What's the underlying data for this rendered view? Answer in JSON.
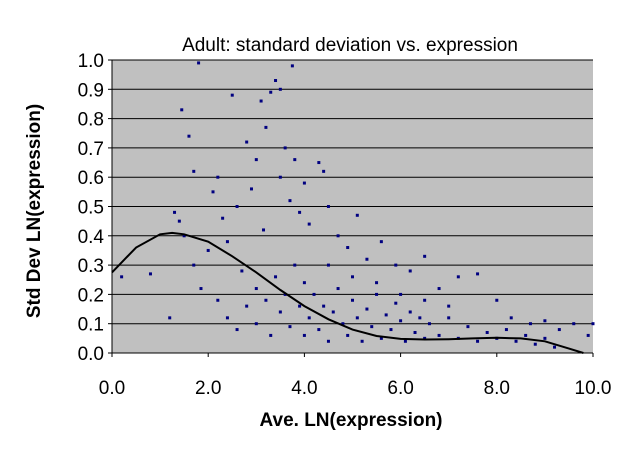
{
  "chart_data": {
    "type": "scatter",
    "title": "Adult: standard deviation vs. expression",
    "xlabel": "Ave. LN(expression)",
    "ylabel": "Std Dev LN(expression)",
    "xlim": [
      0,
      10
    ],
    "ylim": [
      0,
      1
    ],
    "x_ticks": [
      "0.0",
      "2.0",
      "4.0",
      "6.0",
      "8.0",
      "10.0"
    ],
    "y_ticks": [
      "0.0",
      "0.1",
      "0.2",
      "0.3",
      "0.4",
      "0.5",
      "0.6",
      "0.7",
      "0.8",
      "0.9",
      "1.0"
    ],
    "plot_background": "#c0c0c0",
    "gridlines": "horizontal",
    "point_color": "#000080",
    "trend_color": "#000000",
    "series": [
      {
        "kind": "points",
        "points": [
          [
            0.2,
            0.26
          ],
          [
            0.8,
            0.27
          ],
          [
            1.2,
            0.12
          ],
          [
            1.3,
            0.48
          ],
          [
            1.4,
            0.45
          ],
          [
            1.45,
            0.83
          ],
          [
            1.5,
            0.4
          ],
          [
            1.6,
            0.74
          ],
          [
            1.7,
            0.3
          ],
          [
            1.7,
            0.62
          ],
          [
            1.8,
            0.99
          ],
          [
            1.85,
            0.22
          ],
          [
            2.0,
            0.35
          ],
          [
            2.1,
            0.55
          ],
          [
            2.2,
            0.6
          ],
          [
            2.2,
            0.18
          ],
          [
            2.3,
            0.46
          ],
          [
            2.4,
            0.38
          ],
          [
            2.5,
            0.88
          ],
          [
            2.6,
            0.5
          ],
          [
            2.7,
            0.28
          ],
          [
            2.8,
            0.72
          ],
          [
            2.9,
            0.56
          ],
          [
            3.0,
            0.66
          ],
          [
            3.1,
            0.86
          ],
          [
            3.15,
            0.42
          ],
          [
            3.2,
            0.77
          ],
          [
            3.3,
            0.89
          ],
          [
            3.4,
            0.93
          ],
          [
            3.5,
            0.9
          ],
          [
            3.5,
            0.6
          ],
          [
            3.6,
            0.7
          ],
          [
            3.7,
            0.52
          ],
          [
            3.75,
            0.98
          ],
          [
            3.8,
            0.66
          ],
          [
            3.9,
            0.48
          ],
          [
            4.0,
            0.58
          ],
          [
            4.1,
            0.44
          ],
          [
            4.3,
            0.65
          ],
          [
            4.4,
            0.62
          ],
          [
            4.5,
            0.5
          ],
          [
            4.7,
            0.4
          ],
          [
            4.9,
            0.36
          ],
          [
            5.1,
            0.47
          ],
          [
            5.3,
            0.32
          ],
          [
            5.6,
            0.38
          ],
          [
            5.9,
            0.3
          ],
          [
            6.2,
            0.28
          ],
          [
            6.5,
            0.33
          ],
          [
            6.8,
            0.22
          ],
          [
            7.2,
            0.26
          ],
          [
            7.6,
            0.27
          ],
          [
            8.0,
            0.18
          ],
          [
            8.3,
            0.12
          ],
          [
            8.7,
            0.1
          ],
          [
            9.0,
            0.11
          ],
          [
            9.3,
            0.08
          ],
          [
            9.6,
            0.1
          ],
          [
            9.9,
            0.06
          ],
          [
            10.0,
            0.1
          ]
        ]
      },
      {
        "kind": "points",
        "points": [
          [
            2.4,
            0.12
          ],
          [
            2.6,
            0.08
          ],
          [
            2.8,
            0.16
          ],
          [
            3.0,
            0.1
          ],
          [
            3.0,
            0.22
          ],
          [
            3.2,
            0.18
          ],
          [
            3.3,
            0.06
          ],
          [
            3.4,
            0.26
          ],
          [
            3.5,
            0.14
          ],
          [
            3.6,
            0.2
          ],
          [
            3.7,
            0.09
          ],
          [
            3.8,
            0.3
          ],
          [
            3.9,
            0.16
          ],
          [
            4.0,
            0.24
          ],
          [
            4.0,
            0.06
          ],
          [
            4.1,
            0.12
          ],
          [
            4.2,
            0.2
          ],
          [
            4.3,
            0.08
          ],
          [
            4.4,
            0.16
          ],
          [
            4.5,
            0.04
          ],
          [
            4.6,
            0.14
          ],
          [
            4.7,
            0.22
          ],
          [
            4.8,
            0.1
          ],
          [
            4.9,
            0.06
          ],
          [
            5.0,
            0.18
          ],
          [
            5.1,
            0.12
          ],
          [
            5.2,
            0.04
          ],
          [
            5.3,
            0.15
          ],
          [
            5.4,
            0.09
          ],
          [
            5.5,
            0.2
          ],
          [
            5.6,
            0.05
          ],
          [
            5.7,
            0.13
          ],
          [
            5.8,
            0.08
          ],
          [
            5.9,
            0.17
          ],
          [
            6.0,
            0.11
          ],
          [
            6.1,
            0.04
          ],
          [
            6.2,
            0.14
          ],
          [
            6.3,
            0.07
          ],
          [
            6.4,
            0.12
          ],
          [
            6.5,
            0.05
          ],
          [
            6.6,
            0.1
          ],
          [
            6.8,
            0.06
          ],
          [
            7.0,
            0.12
          ],
          [
            7.2,
            0.05
          ],
          [
            7.4,
            0.09
          ],
          [
            7.6,
            0.04
          ],
          [
            7.8,
            0.07
          ],
          [
            8.0,
            0.05
          ],
          [
            8.2,
            0.08
          ],
          [
            8.4,
            0.04
          ],
          [
            8.6,
            0.06
          ],
          [
            8.8,
            0.03
          ],
          [
            9.0,
            0.05
          ],
          [
            9.2,
            0.02
          ],
          [
            4.5,
            0.3
          ],
          [
            5.0,
            0.26
          ],
          [
            5.5,
            0.24
          ],
          [
            6.0,
            0.2
          ],
          [
            6.5,
            0.18
          ],
          [
            7.0,
            0.16
          ]
        ]
      },
      {
        "kind": "trend",
        "x": [
          0,
          0.5,
          1.0,
          1.25,
          1.5,
          2.0,
          2.5,
          3.0,
          3.5,
          4.0,
          4.5,
          5.0,
          5.5,
          6.0,
          6.5,
          7.0,
          7.5,
          8.0,
          8.5,
          9.0,
          9.5,
          9.8
        ],
        "y": [
          0.275,
          0.36,
          0.405,
          0.41,
          0.405,
          0.38,
          0.33,
          0.275,
          0.215,
          0.16,
          0.115,
          0.08,
          0.058,
          0.048,
          0.046,
          0.047,
          0.05,
          0.052,
          0.05,
          0.04,
          0.015,
          0.0
        ]
      }
    ]
  }
}
